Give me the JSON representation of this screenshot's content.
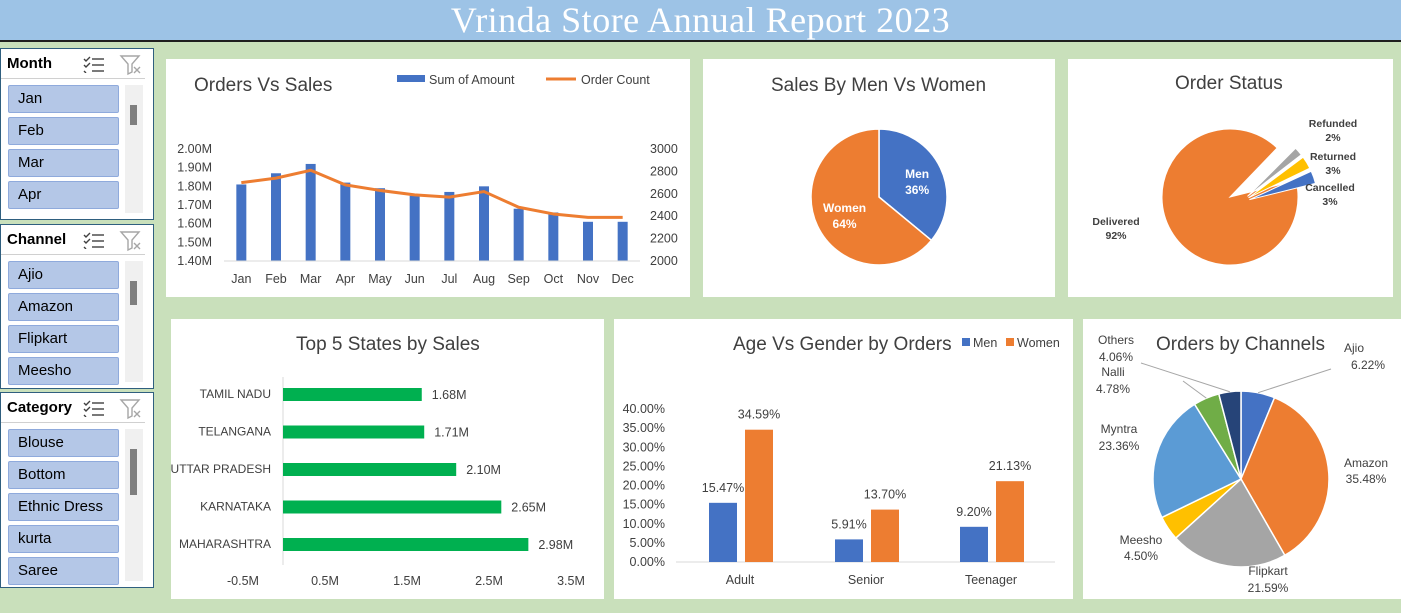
{
  "report_title": "Vrinda Store Annual Report 2023",
  "slicers": [
    {
      "label": "Month",
      "items": [
        "Jan",
        "Feb",
        "Mar",
        "Apr"
      ]
    },
    {
      "label": "Channel",
      "items": [
        "Ajio",
        "Amazon",
        "Flipkart",
        "Meesho"
      ]
    },
    {
      "label": "Category",
      "items": [
        "Blouse",
        "Bottom",
        "Ethnic Dress",
        "kurta",
        "Saree"
      ]
    }
  ],
  "colors": {
    "blue": "#4472c4",
    "orange": "#ed7d31",
    "green": "#00b050",
    "gray": "#a5a5a5",
    "yellow": "#ffc000",
    "lightblue": "#5b9bd5",
    "midgreen": "#70ad47",
    "navy": "#264478"
  },
  "chart_data": [
    {
      "id": "orders_vs_sales",
      "type": "bar",
      "title": "Orders Vs Sales",
      "categories": [
        "Jan",
        "Feb",
        "Mar",
        "Apr",
        "May",
        "Jun",
        "Jul",
        "Aug",
        "Sep",
        "Oct",
        "Nov",
        "Dec"
      ],
      "series": [
        {
          "name": "Sum of Amount",
          "type": "bar",
          "axis": "left",
          "values": [
            1.81,
            1.87,
            1.92,
            1.82,
            1.79,
            1.75,
            1.77,
            1.8,
            1.68,
            1.66,
            1.61,
            1.61
          ]
        },
        {
          "name": "Order Count",
          "type": "line",
          "axis": "right",
          "values": [
            2700,
            2740,
            2810,
            2680,
            2630,
            2590,
            2570,
            2620,
            2480,
            2420,
            2390,
            2390
          ]
        }
      ],
      "y_left_ticks": [
        "2.00M",
        "1.90M",
        "1.80M",
        "1.70M",
        "1.60M",
        "1.50M",
        "1.40M"
      ],
      "y_right_ticks": [
        "3000",
        "2800",
        "2600",
        "2400",
        "2200",
        "2000"
      ],
      "ylim_left": [
        1.4,
        2.0
      ],
      "ylim_right": [
        2000,
        3000
      ],
      "legend": "top"
    },
    {
      "id": "sales_men_women",
      "type": "pie",
      "title": "Sales By Men Vs Women",
      "slices": [
        {
          "name": "Men",
          "value": 36,
          "label": "36%"
        },
        {
          "name": "Women",
          "value": 64,
          "label": "64%"
        }
      ]
    },
    {
      "id": "order_status",
      "type": "pie",
      "title": "Order Status",
      "slices": [
        {
          "name": "Delivered",
          "value": 92,
          "label": "92%"
        },
        {
          "name": "Refunded",
          "value": 2,
          "label": "2%"
        },
        {
          "name": "Returned",
          "value": 3,
          "label": "3%"
        },
        {
          "name": "Cancelled",
          "value": 3,
          "label": "3%"
        }
      ]
    },
    {
      "id": "top_states",
      "type": "bar",
      "orientation": "horizontal",
      "title": "Top 5 States by Sales",
      "categories": [
        "TAMIL NADU",
        "TELANGANA",
        "UTTAR PRADESH",
        "KARNATAKA",
        "MAHARASHTRA"
      ],
      "values": [
        1.68,
        1.71,
        2.1,
        2.65,
        2.98
      ],
      "value_labels": [
        "1.68M",
        "1.71M",
        "2.10M",
        "2.65M",
        "2.98M"
      ],
      "x_ticks": [
        "-0.5M",
        "0.5M",
        "1.5M",
        "2.5M",
        "3.5M"
      ],
      "xlim": [
        -0.5,
        3.5
      ]
    },
    {
      "id": "age_gender",
      "type": "bar",
      "title": "Age Vs Gender by Orders",
      "categories": [
        "Adult",
        "Senior",
        "Teenager"
      ],
      "series": [
        {
          "name": "Men",
          "values": [
            15.47,
            5.91,
            9.2
          ],
          "labels": [
            "15.47%",
            "5.91%",
            "9.20%"
          ]
        },
        {
          "name": "Women",
          "values": [
            34.59,
            13.7,
            21.13
          ],
          "labels": [
            "34.59%",
            "13.70%",
            "21.13%"
          ]
        }
      ],
      "y_ticks": [
        "40.00%",
        "35.00%",
        "30.00%",
        "25.00%",
        "20.00%",
        "15.00%",
        "10.00%",
        "5.00%",
        "0.00%"
      ],
      "ylim": [
        0,
        40
      ],
      "legend": "top-right"
    },
    {
      "id": "channels",
      "type": "pie",
      "title": "Orders by Channels",
      "slices": [
        {
          "name": "Ajio",
          "value": 6.22,
          "label": "6.22%"
        },
        {
          "name": "Amazon",
          "value": 35.48,
          "label": "35.48%"
        },
        {
          "name": "Flipkart",
          "value": 21.59,
          "label": "21.59%"
        },
        {
          "name": "Meesho",
          "value": 4.5,
          "label": "4.50%"
        },
        {
          "name": "Myntra",
          "value": 23.36,
          "label": "23.36%"
        },
        {
          "name": "Nalli",
          "value": 4.78,
          "label": "4.78%"
        },
        {
          "name": "Others",
          "value": 4.06,
          "label": "4.06%"
        }
      ]
    }
  ]
}
